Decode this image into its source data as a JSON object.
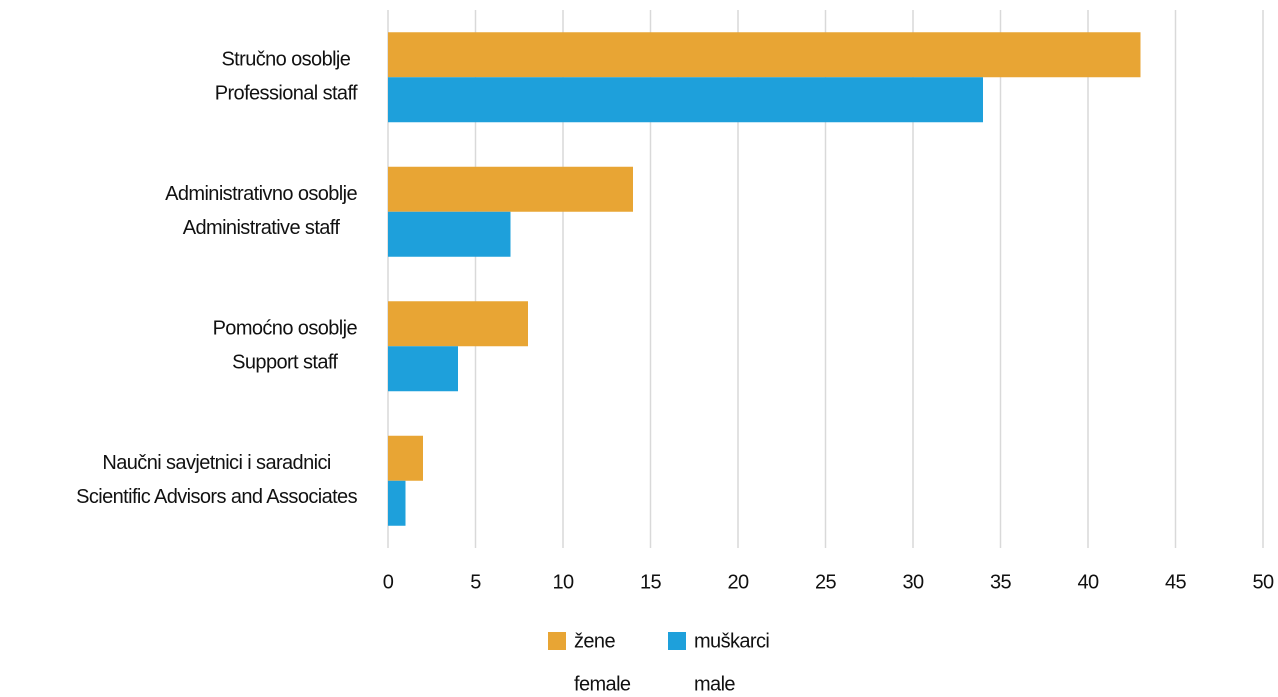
{
  "chart_data": {
    "type": "hbar",
    "categories": [
      [
        "Stručno osoblje",
        "Professional staff"
      ],
      [
        "Administrativno osoblje",
        "Administrative staff"
      ],
      [
        "Pomoćno osoblje",
        "Support staff"
      ],
      [
        "Naučni savjetnici i saradnici",
        "Scientific Advisors and Associates"
      ]
    ],
    "series": [
      {
        "name": [
          "žene",
          "female"
        ],
        "color": "#e8a534",
        "values": [
          43,
          14,
          8,
          2
        ]
      },
      {
        "name": [
          "muškarci",
          "male"
        ],
        "color": "#1ea0db",
        "values": [
          34,
          7,
          4,
          1
        ]
      }
    ],
    "xlim": [
      0,
      50
    ],
    "xticks": [
      0,
      5,
      10,
      15,
      20,
      25,
      30,
      35,
      40,
      45,
      50
    ],
    "grid": true,
    "legend": "bottom"
  }
}
